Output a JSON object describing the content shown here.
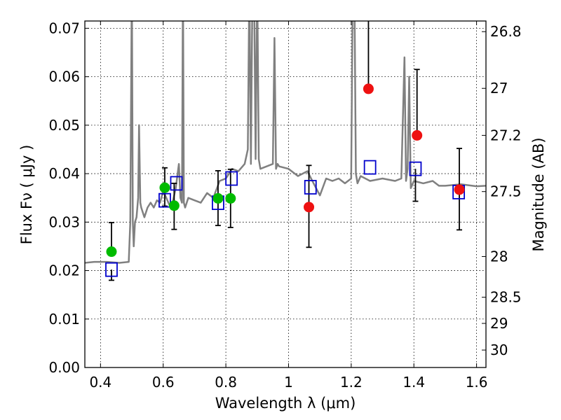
{
  "chart_data": {
    "type": "scatter",
    "xlabel": "Wavelength  λ (μm)",
    "ylabel": "Flux  Fν  ( μJy )",
    "ylabel_right": "Magnitude (AB)",
    "xlim": [
      0.35,
      1.63
    ],
    "ylim": [
      0.0,
      0.0715
    ],
    "grid": true,
    "x_ticks": [
      0.4,
      0.6,
      0.8,
      1.0,
      1.2,
      1.4,
      1.6
    ],
    "x_tick_labels": [
      "0.4",
      "0.6",
      "0.8",
      "1",
      "1.2",
      "1.4",
      "1.6"
    ],
    "y_ticks": [
      0.0,
      0.01,
      0.02,
      0.03,
      0.04,
      0.05,
      0.06,
      0.07
    ],
    "y_tick_labels": [
      "0.00",
      "0.01",
      "0.02",
      "0.03",
      "0.04",
      "0.05",
      "0.06",
      "0.07"
    ],
    "right_ticks": [
      {
        "label": "26.8",
        "flux": 0.0693
      },
      {
        "label": "27",
        "flux": 0.0576
      },
      {
        "label": "27.2",
        "flux": 0.0479
      },
      {
        "label": "27.5",
        "flux": 0.0363
      },
      {
        "label": "28",
        "flux": 0.0229
      },
      {
        "label": "28.5",
        "flux": 0.0145
      },
      {
        "label": "29",
        "flux": 0.0091
      },
      {
        "label": "30",
        "flux": 0.0036
      }
    ],
    "colors": {
      "sed_line": "#808080",
      "observed_hst": "#00bb00",
      "observed_wfc3": "#ee1111",
      "model_box": "#0000cc",
      "error_bar": "#000000"
    },
    "series": [
      {
        "kind": "line",
        "x": [
          0.35,
          0.38,
          0.42,
          0.46,
          0.49,
          0.495,
          0.5,
          0.503,
          0.506,
          0.51,
          0.515,
          0.52,
          0.523,
          0.527,
          0.53,
          0.54,
          0.55,
          0.56,
          0.57,
          0.58,
          0.59,
          0.6,
          0.61,
          0.62,
          0.63,
          0.64,
          0.65,
          0.655,
          0.66,
          0.663,
          0.666,
          0.67,
          0.68,
          0.7,
          0.72,
          0.74,
          0.76,
          0.78,
          0.8,
          0.82,
          0.84,
          0.86,
          0.87,
          0.875,
          0.88,
          0.885,
          0.89,
          0.895,
          0.9,
          0.905,
          0.91,
          0.93,
          0.95,
          0.955,
          0.96,
          0.965,
          0.97,
          1.0,
          1.03,
          1.06,
          1.08,
          1.1,
          1.12,
          1.14,
          1.16,
          1.18,
          1.2,
          1.205,
          1.21,
          1.215,
          1.22,
          1.23,
          1.26,
          1.3,
          1.34,
          1.36,
          1.37,
          1.375,
          1.38,
          1.385,
          1.39,
          1.4,
          1.43,
          1.46,
          1.48,
          1.5,
          1.55,
          1.6,
          1.63
        ],
        "y": [
          0.0216,
          0.0218,
          0.0218,
          0.0216,
          0.0218,
          0.03,
          0.08,
          0.03,
          0.025,
          0.03,
          0.031,
          0.035,
          0.05,
          0.034,
          0.033,
          0.031,
          0.033,
          0.034,
          0.033,
          0.0345,
          0.034,
          0.0365,
          0.035,
          0.0335,
          0.034,
          0.037,
          0.042,
          0.035,
          0.034,
          0.08,
          0.034,
          0.033,
          0.035,
          0.0345,
          0.034,
          0.036,
          0.035,
          0.0385,
          0.039,
          0.041,
          0.0405,
          0.042,
          0.045,
          0.08,
          0.042,
          0.08,
          0.08,
          0.043,
          0.08,
          0.043,
          0.041,
          0.0415,
          0.042,
          0.068,
          0.041,
          0.042,
          0.0415,
          0.041,
          0.0395,
          0.0405,
          0.038,
          0.0355,
          0.039,
          0.0385,
          0.039,
          0.038,
          0.039,
          0.08,
          0.08,
          0.04,
          0.038,
          0.0395,
          0.0385,
          0.039,
          0.0385,
          0.039,
          0.064,
          0.0385,
          0.041,
          0.06,
          0.037,
          0.0385,
          0.038,
          0.0385,
          0.0375,
          0.0375,
          0.0378,
          0.0374,
          0.0375
        ]
      },
      {
        "kind": "points_green",
        "x": [
          0.435,
          0.605,
          0.635,
          0.775,
          0.815
        ],
        "y": [
          0.0239,
          0.0371,
          0.0334,
          0.0349,
          0.0349
        ],
        "err_low": [
          0.0,
          0.0038,
          0.0049,
          0.0056,
          0.006
        ],
        "err_high": [
          0.006,
          0.0041,
          0.0046,
          0.0057,
          0.006
        ]
      },
      {
        "kind": "points_red",
        "x": [
          1.065,
          1.255,
          1.41,
          1.545
        ],
        "y": [
          0.0331,
          0.0575,
          0.0479,
          0.0367
        ],
        "err_low": [
          0.0083,
          0.0,
          0.0,
          0.0083
        ],
        "err_high": [
          0.0086,
          0.015,
          0.0136,
          0.0085
        ]
      },
      {
        "kind": "model_boxes",
        "x": [
          0.435,
          0.605,
          0.642,
          0.775,
          0.818,
          1.07,
          1.26,
          1.405,
          1.543
        ],
        "y": [
          0.0202,
          0.0345,
          0.038,
          0.034,
          0.039,
          0.0372,
          0.0413,
          0.041,
          0.0362
        ],
        "err_low": [
          0.0022,
          0.0,
          0.0,
          0.0,
          0.0,
          0.0,
          0.0,
          0.0067,
          0.0
        ],
        "err_high": [
          0.0,
          0.0,
          0.0,
          0.0,
          0.0,
          0.0,
          0.0,
          0.0,
          0.0
        ]
      }
    ]
  }
}
